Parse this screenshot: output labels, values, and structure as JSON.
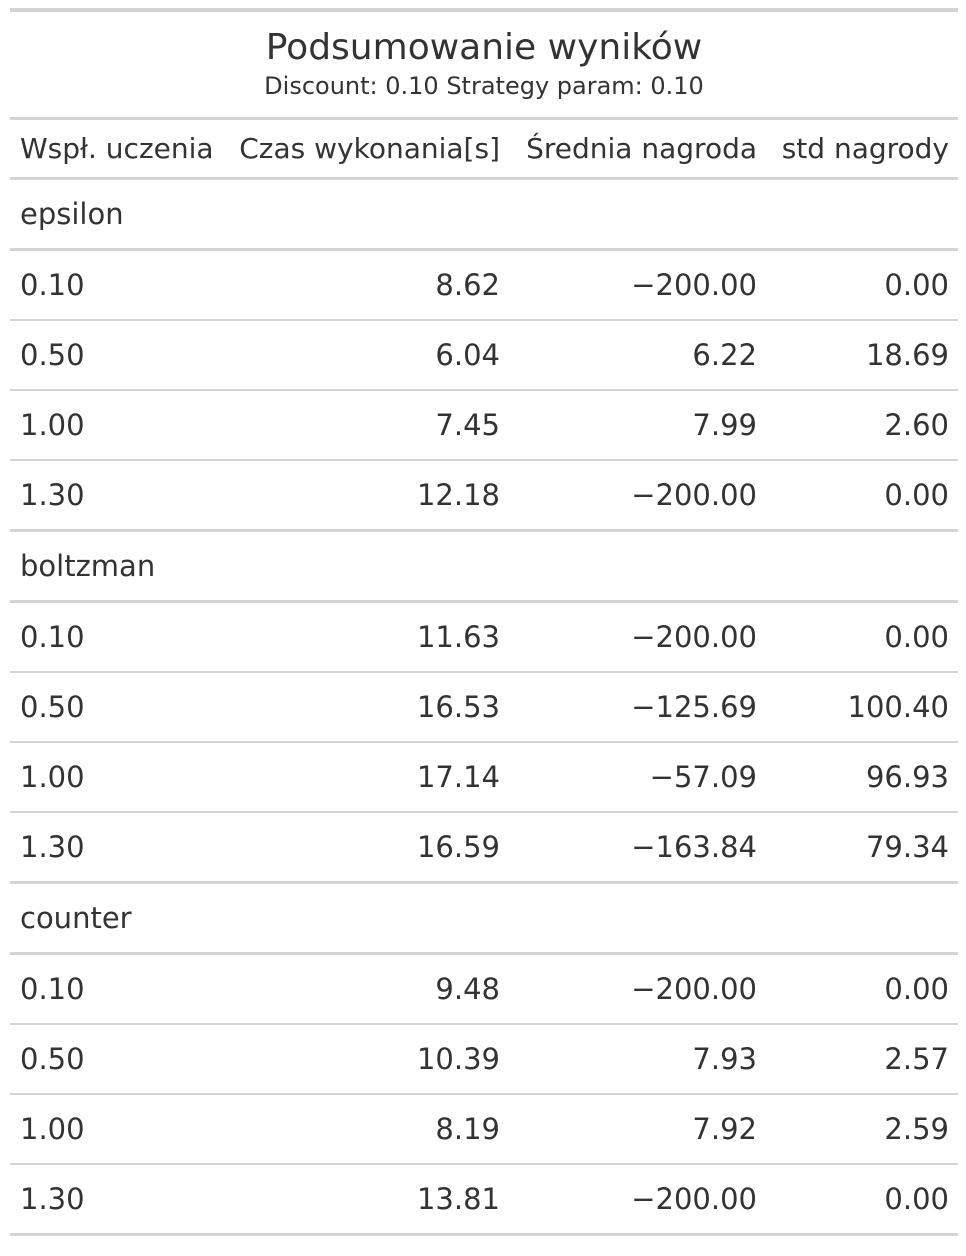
{
  "table": {
    "title": "Podsumowanie wyników",
    "subtitle": "Discount: 0.10 Strategy param: 0.10",
    "columns": [
      "Wspł. uczenia",
      "Czas wykonania[s]",
      "Średnia nagroda",
      "std nagrody"
    ],
    "groups": [
      {
        "name": "epsilon",
        "rows": [
          [
            "0.10",
            "8.62",
            "−200.00",
            "0.00"
          ],
          [
            "0.50",
            "6.04",
            "6.22",
            "18.69"
          ],
          [
            "1.00",
            "7.45",
            "7.99",
            "2.60"
          ],
          [
            "1.30",
            "12.18",
            "−200.00",
            "0.00"
          ]
        ]
      },
      {
        "name": "boltzman",
        "rows": [
          [
            "0.10",
            "11.63",
            "−200.00",
            "0.00"
          ],
          [
            "0.50",
            "16.53",
            "−125.69",
            "100.40"
          ],
          [
            "1.00",
            "17.14",
            "−57.09",
            "96.93"
          ],
          [
            "1.30",
            "16.59",
            "−163.84",
            "79.34"
          ]
        ]
      },
      {
        "name": "counter",
        "rows": [
          [
            "0.10",
            "9.48",
            "−200.00",
            "0.00"
          ],
          [
            "0.50",
            "10.39",
            "7.93",
            "2.57"
          ],
          [
            "1.00",
            "8.19",
            "7.92",
            "2.59"
          ],
          [
            "1.30",
            "13.81",
            "−200.00",
            "0.00"
          ]
        ]
      }
    ]
  },
  "colors": {
    "text": "#333333",
    "rule": "#d3d3d3",
    "background": "#ffffff"
  }
}
